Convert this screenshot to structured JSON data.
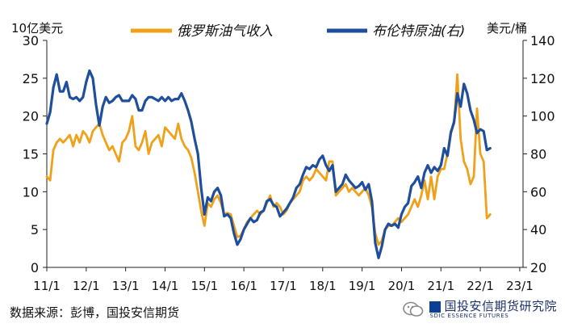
{
  "chart_data": {
    "type": "line",
    "left_axis_label": "10亿美元",
    "right_axis_label": "美元/桶",
    "left_ylim": [
      0,
      30
    ],
    "right_ylim": [
      20,
      140
    ],
    "left_ticks": [
      "0",
      "5",
      "10",
      "15",
      "20",
      "25",
      "30"
    ],
    "right_ticks": [
      "20",
      "40",
      "60",
      "80",
      "100",
      "120",
      "140"
    ],
    "x_labels": [
      "11/1",
      "12/1",
      "13/1",
      "14/1",
      "15/1",
      "16/1",
      "17/1",
      "18/1",
      "19/1",
      "20/1",
      "21/1",
      "22/1",
      "23/1"
    ],
    "x_range": [
      0,
      145
    ],
    "series": [
      {
        "name": "俄罗斯油气收入",
        "axis": "left",
        "color": "#f0a11a",
        "points": [
          [
            0,
            12
          ],
          [
            1,
            11.5
          ],
          [
            2,
            15.5
          ],
          [
            3,
            16.5
          ],
          [
            4,
            17
          ],
          [
            5,
            16.5
          ],
          [
            6,
            17
          ],
          [
            7,
            17.5
          ],
          [
            8,
            16
          ],
          [
            9,
            17.5
          ],
          [
            10,
            16.5
          ],
          [
            11,
            18
          ],
          [
            12,
            17.5
          ],
          [
            13,
            16.5
          ],
          [
            14,
            18
          ],
          [
            15,
            18.5
          ],
          [
            16,
            19
          ],
          [
            17,
            17.5
          ],
          [
            18,
            16.5
          ],
          [
            19,
            15.5
          ],
          [
            20,
            16
          ],
          [
            21,
            15
          ],
          [
            22,
            14
          ],
          [
            23,
            16.5
          ],
          [
            24,
            17
          ],
          [
            25,
            18
          ],
          [
            26,
            20
          ],
          [
            27,
            16
          ],
          [
            28,
            15.5
          ],
          [
            29,
            16.5
          ],
          [
            30,
            18
          ],
          [
            31,
            15
          ],
          [
            32,
            16.5
          ],
          [
            33,
            17
          ],
          [
            34,
            17.5
          ],
          [
            35,
            16
          ],
          [
            36,
            18.5
          ],
          [
            37,
            18
          ],
          [
            38,
            17.5
          ],
          [
            39,
            17
          ],
          [
            40,
            19
          ],
          [
            41,
            17
          ],
          [
            42,
            16
          ],
          [
            43,
            15.5
          ],
          [
            44,
            14.5
          ],
          [
            45,
            12.5
          ],
          [
            46,
            10
          ],
          [
            47,
            7.5
          ],
          [
            48,
            5.5
          ],
          [
            49,
            8.5
          ],
          [
            50,
            8
          ],
          [
            51,
            9
          ],
          [
            52,
            9.5
          ],
          [
            53,
            8.5
          ],
          [
            54,
            7
          ],
          [
            55,
            7.2
          ],
          [
            56,
            7
          ],
          [
            57,
            5.5
          ],
          [
            58,
            4
          ],
          [
            59,
            4.2
          ],
          [
            60,
            5
          ],
          [
            61,
            6
          ],
          [
            62,
            6.5
          ],
          [
            63,
            7
          ],
          [
            64,
            7.5
          ],
          [
            65,
            7
          ],
          [
            66,
            7.5
          ],
          [
            67,
            8.5
          ],
          [
            68,
            9.5
          ],
          [
            69,
            8
          ],
          [
            70,
            8.5
          ],
          [
            71,
            8
          ],
          [
            72,
            7
          ],
          [
            73,
            7.5
          ],
          [
            74,
            8.5
          ],
          [
            75,
            9
          ],
          [
            76,
            9.5
          ],
          [
            77,
            10
          ],
          [
            78,
            11.5
          ],
          [
            79,
            12
          ],
          [
            80,
            11.5
          ],
          [
            81,
            12
          ],
          [
            82,
            13
          ],
          [
            83,
            12.5
          ],
          [
            84,
            12
          ],
          [
            85,
            11.5
          ],
          [
            86,
            14
          ],
          [
            87,
            14
          ],
          [
            88,
            9.5
          ],
          [
            89,
            10
          ],
          [
            90,
            10.5
          ],
          [
            91,
            11
          ],
          [
            92,
            10
          ],
          [
            93,
            10.5
          ],
          [
            94,
            10
          ],
          [
            95,
            9.5
          ],
          [
            96,
            10
          ],
          [
            97,
            10.5
          ],
          [
            98,
            9.5
          ],
          [
            99,
            8
          ],
          [
            100,
            4.5
          ],
          [
            101,
            3
          ],
          [
            102,
            3.5
          ],
          [
            103,
            5
          ],
          [
            104,
            5.5
          ],
          [
            105,
            5.5
          ],
          [
            106,
            6
          ],
          [
            107,
            6.5
          ],
          [
            108,
            6
          ],
          [
            109,
            6.5
          ],
          [
            110,
            7
          ],
          [
            111,
            8
          ],
          [
            112,
            9
          ],
          [
            113,
            8
          ],
          [
            114,
            9.5
          ],
          [
            115,
            11.5
          ],
          [
            116,
            9
          ],
          [
            117,
            12
          ],
          [
            118,
            9
          ],
          [
            119,
            12
          ],
          [
            120,
            13
          ],
          [
            121,
            13
          ],
          [
            122,
            15
          ],
          [
            123,
            18
          ],
          [
            124,
            19
          ],
          [
            125,
            25.5
          ],
          [
            126,
            17
          ],
          [
            127,
            14
          ],
          [
            128,
            13
          ],
          [
            129,
            11
          ],
          [
            130,
            12
          ],
          [
            131,
            21
          ],
          [
            132,
            15
          ],
          [
            133,
            14
          ],
          [
            134,
            6.5
          ],
          [
            135,
            7
          ]
        ]
      },
      {
        "name": "布伦特原油(右)",
        "axis": "right",
        "color": "#1f4e9c",
        "points": [
          [
            0,
            96
          ],
          [
            1,
            102
          ],
          [
            2,
            115
          ],
          [
            3,
            122
          ],
          [
            4,
            113
          ],
          [
            5,
            113
          ],
          [
            6,
            118
          ],
          [
            7,
            110
          ],
          [
            8,
            109
          ],
          [
            9,
            110
          ],
          [
            10,
            108
          ],
          [
            11,
            110
          ],
          [
            12,
            118
          ],
          [
            13,
            124
          ],
          [
            14,
            120
          ],
          [
            15,
            106
          ],
          [
            16,
            95
          ],
          [
            17,
            105
          ],
          [
            18,
            110
          ],
          [
            19,
            107
          ],
          [
            20,
            108
          ],
          [
            21,
            110
          ],
          [
            22,
            111
          ],
          [
            23,
            108
          ],
          [
            24,
            108
          ],
          [
            25,
            108
          ],
          [
            26,
            111
          ],
          [
            27,
            109
          ],
          [
            28,
            103
          ],
          [
            29,
            103
          ],
          [
            30,
            108
          ],
          [
            31,
            110
          ],
          [
            32,
            110
          ],
          [
            33,
            109
          ],
          [
            34,
            108
          ],
          [
            35,
            110
          ],
          [
            36,
            108
          ],
          [
            37,
            110
          ],
          [
            38,
            108
          ],
          [
            39,
            109
          ],
          [
            40,
            109
          ],
          [
            41,
            112
          ],
          [
            42,
            108
          ],
          [
            43,
            103
          ],
          [
            44,
            97
          ],
          [
            45,
            88
          ],
          [
            46,
            80
          ],
          [
            47,
            62
          ],
          [
            48,
            48
          ],
          [
            49,
            57
          ],
          [
            50,
            55
          ],
          [
            51,
            60
          ],
          [
            52,
            62
          ],
          [
            53,
            58
          ],
          [
            54,
            47
          ],
          [
            55,
            48
          ],
          [
            56,
            46
          ],
          [
            57,
            38
          ],
          [
            58,
            32
          ],
          [
            59,
            35
          ],
          [
            60,
            40
          ],
          [
            61,
            43
          ],
          [
            62,
            46
          ],
          [
            63,
            44
          ],
          [
            64,
            45
          ],
          [
            65,
            49
          ],
          [
            66,
            50
          ],
          [
            67,
            55
          ],
          [
            68,
            56
          ],
          [
            69,
            53
          ],
          [
            70,
            52
          ],
          [
            71,
            47
          ],
          [
            72,
            49
          ],
          [
            73,
            51
          ],
          [
            74,
            54
          ],
          [
            75,
            57
          ],
          [
            76,
            62
          ],
          [
            77,
            64
          ],
          [
            78,
            69
          ],
          [
            79,
            73
          ],
          [
            80,
            72
          ],
          [
            81,
            74
          ],
          [
            82,
            73
          ],
          [
            83,
            77
          ],
          [
            84,
            79
          ],
          [
            85,
            74
          ],
          [
            86,
            71
          ],
          [
            87,
            74
          ],
          [
            88,
            60
          ],
          [
            89,
            62
          ],
          [
            90,
            64
          ],
          [
            91,
            69
          ],
          [
            92,
            66
          ],
          [
            93,
            64
          ],
          [
            94,
            62
          ],
          [
            95,
            63
          ],
          [
            96,
            65
          ],
          [
            97,
            61
          ],
          [
            98,
            64
          ],
          [
            99,
            55
          ],
          [
            100,
            33
          ],
          [
            101,
            25
          ],
          [
            102,
            31
          ],
          [
            103,
            40
          ],
          [
            104,
            43
          ],
          [
            105,
            42
          ],
          [
            106,
            43
          ],
          [
            107,
            41
          ],
          [
            108,
            48
          ],
          [
            109,
            52
          ],
          [
            110,
            54
          ],
          [
            111,
            63
          ],
          [
            112,
            65
          ],
          [
            113,
            68
          ],
          [
            114,
            62
          ],
          [
            115,
            70
          ],
          [
            116,
            74
          ],
          [
            117,
            70
          ],
          [
            118,
            73
          ],
          [
            119,
            71
          ],
          [
            120,
            74
          ],
          [
            121,
            83
          ],
          [
            122,
            79
          ],
          [
            123,
            91
          ],
          [
            124,
            97
          ],
          [
            125,
            112
          ],
          [
            126,
            105
          ],
          [
            127,
            117
          ],
          [
            128,
            112
          ],
          [
            129,
            103
          ],
          [
            130,
            98
          ],
          [
            131,
            91
          ],
          [
            132,
            93
          ],
          [
            133,
            92
          ],
          [
            134,
            82
          ],
          [
            135,
            83
          ]
        ]
      }
    ]
  },
  "legend": {
    "revenue_label": "俄罗斯油气收入",
    "brent_label": "布伦特原油(右)"
  },
  "source": "数据来源：彭博，国投安信期货",
  "watermark": {
    "cn": "国投安信期货研究院",
    "en": "SDIC ESSENCE FUTURES"
  },
  "colors": {
    "revenue": "#f0a11a",
    "brent": "#1f4e9c",
    "axis": "#222222"
  }
}
